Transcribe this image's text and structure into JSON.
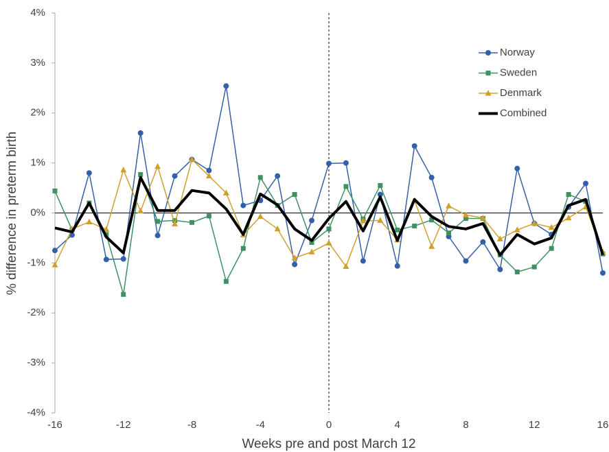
{
  "chart_data": {
    "type": "line",
    "x_label": "Weeks pre and post March 12",
    "y_label": "% difference in preterm birth",
    "x": [
      -16,
      -15,
      -14,
      -13,
      -12,
      -11,
      -10,
      -9,
      -8,
      -7,
      -6,
      -5,
      -4,
      -3,
      -2,
      -1,
      0,
      1,
      2,
      3,
      4,
      5,
      6,
      7,
      8,
      9,
      10,
      11,
      12,
      13,
      14,
      15,
      16
    ],
    "xlim": [
      -16,
      16
    ],
    "xticks": [
      -16,
      -12,
      -8,
      -4,
      0,
      4,
      8,
      12,
      16
    ],
    "ylim": [
      -4,
      4
    ],
    "yticks": [
      {
        "value": -4,
        "label": "-4%"
      },
      {
        "value": -3,
        "label": "-3%"
      },
      {
        "value": -2,
        "label": "-2%"
      },
      {
        "value": -1,
        "label": "-1%"
      },
      {
        "value": 0,
        "label": "0%"
      },
      {
        "value": 1,
        "label": "1%"
      },
      {
        "value": 2,
        "label": "2%"
      },
      {
        "value": 3,
        "label": "3%"
      },
      {
        "value": 4,
        "label": "4%"
      }
    ],
    "hlines": [
      0
    ],
    "vlines": [
      0
    ],
    "grid": false,
    "legend": "top-right",
    "series": [
      {
        "name": "Norway",
        "color": "#3460a8",
        "marker": "circle",
        "width": 1.5,
        "values": [
          -0.75,
          -0.44,
          0.8,
          -0.93,
          -0.92,
          1.6,
          -0.45,
          0.74,
          1.07,
          0.85,
          2.54,
          0.15,
          0.25,
          0.74,
          -1.03,
          -0.15,
          0.99,
          1.0,
          -0.96,
          0.37,
          -1.06,
          1.34,
          0.71,
          -0.47,
          -0.96,
          -0.58,
          -1.13,
          0.89,
          -0.21,
          -0.43,
          0.12,
          0.59,
          -1.2
        ]
      },
      {
        "name": "Sweden",
        "color": "#3f9162",
        "marker": "square",
        "width": 1.5,
        "values": [
          0.44,
          -0.34,
          0.2,
          -0.43,
          -1.63,
          0.77,
          -0.17,
          -0.15,
          -0.19,
          -0.06,
          -1.37,
          -0.71,
          0.71,
          0.15,
          0.37,
          -0.59,
          -0.32,
          0.53,
          -0.12,
          0.55,
          -0.34,
          -0.26,
          -0.14,
          -0.4,
          -0.11,
          -0.11,
          -0.84,
          -1.18,
          -1.08,
          -0.71,
          0.37,
          0.23,
          -0.82
        ]
      },
      {
        "name": "Denmark",
        "color": "#d1a02c",
        "marker": "triangle",
        "width": 1.5,
        "values": [
          -1.04,
          -0.32,
          -0.18,
          -0.33,
          0.86,
          0.04,
          0.93,
          -0.22,
          1.07,
          0.74,
          0.4,
          -0.44,
          -0.07,
          -0.32,
          -0.9,
          -0.78,
          -0.6,
          -1.07,
          -0.16,
          -0.15,
          -0.54,
          0.25,
          -0.67,
          0.14,
          -0.04,
          -0.1,
          -0.52,
          -0.34,
          -0.21,
          -0.29,
          -0.1,
          0.12,
          -0.78
        ]
      },
      {
        "name": "Combined",
        "color": "#000000",
        "marker": "none",
        "width": 4,
        "values": [
          -0.3,
          -0.38,
          0.2,
          -0.48,
          -0.8,
          0.71,
          0.05,
          0.05,
          0.45,
          0.4,
          0.08,
          -0.43,
          0.38,
          0.16,
          -0.32,
          -0.55,
          -0.11,
          0.23,
          -0.36,
          0.32,
          -0.55,
          0.27,
          -0.07,
          -0.27,
          -0.32,
          -0.21,
          -0.84,
          -0.43,
          -0.62,
          -0.5,
          0.15,
          0.27,
          -0.84
        ]
      }
    ]
  }
}
